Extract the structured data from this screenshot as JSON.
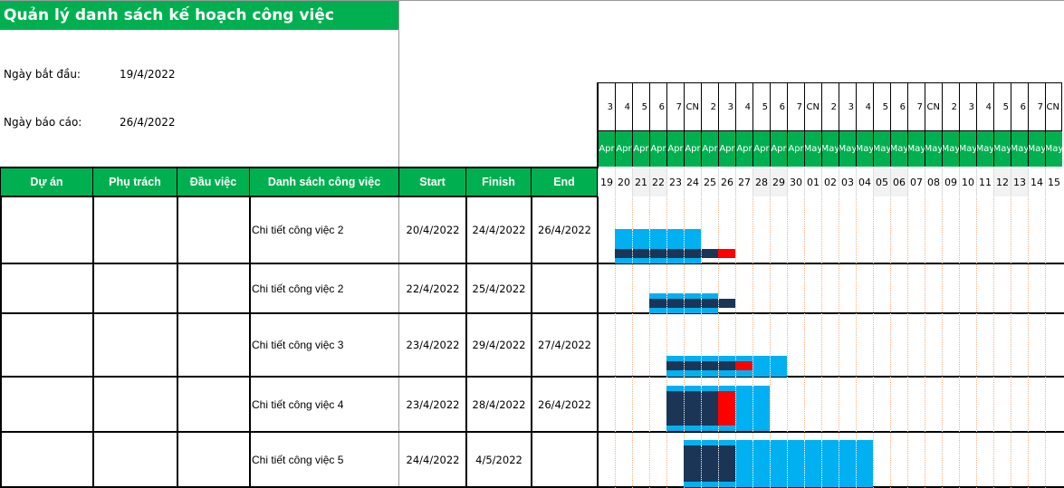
{
  "title": "Quản lý danh sách kế hoạch công việc",
  "info": {
    "start_label": "Ngày bắt đầu:",
    "start_value": "19/4/2022",
    "report_label": "Ngày báo cáo:",
    "report_value": "26/4/2022"
  },
  "columns": [
    "Dự án",
    "Phụ trách",
    "Đầu việc",
    "Danh sách công việc",
    "Start",
    "Finish",
    "End"
  ],
  "rows": [
    {
      "project": "",
      "owner": "",
      "task_head": "",
      "task": "Chi tiết công việc 2",
      "start": "20/4/2022",
      "finish": "24/4/2022",
      "end": "26/4/2022"
    },
    {
      "project": "",
      "owner": "",
      "task_head": "",
      "task": "Chi tiết công việc 2",
      "start": "22/4/2022",
      "finish": "25/4/2022",
      "end": ""
    },
    {
      "project": "",
      "owner": "",
      "task_head": "",
      "task": "Chi tiết công việc 3",
      "start": "23/4/2022",
      "finish": "29/4/2022",
      "end": "27/4/2022"
    },
    {
      "project": "",
      "owner": "",
      "task_head": "",
      "task": "Chi tiết công việc 4",
      "start": "23/4/2022",
      "finish": "28/4/2022",
      "end": "26/4/2022"
    },
    {
      "project": "",
      "owner": "",
      "task_head": "",
      "task": "Chi tiết công việc 5",
      "start": "24/4/2022",
      "finish": "4/5/2022",
      "end": ""
    }
  ],
  "gantt": {
    "weekdays": [
      "3",
      "4",
      "5",
      "6",
      "7",
      "CN",
      "2",
      "3",
      "4",
      "5",
      "6",
      "7",
      "CN",
      "2",
      "3",
      "4",
      "5",
      "6",
      "7",
      "CN",
      "2",
      "3",
      "4",
      "5",
      "6",
      "7",
      "CN"
    ],
    "months": [
      "Apr",
      "Apr",
      "Apr",
      "Apr",
      "Apr",
      "Apr",
      "Apr",
      "Apr",
      "Apr",
      "Apr",
      "Apr",
      "Apr",
      "May",
      "May",
      "May",
      "May",
      "May",
      "May",
      "May",
      "May",
      "May",
      "May",
      "May",
      "May",
      "May",
      "May",
      "May"
    ],
    "days": [
      "19",
      "20",
      "21",
      "22",
      "23",
      "24",
      "25",
      "26",
      "27",
      "28",
      "29",
      "30",
      "01",
      "02",
      "03",
      "04",
      "05",
      "06",
      "07",
      "08",
      "09",
      "10",
      "11",
      "12",
      "13",
      "14",
      "15"
    ],
    "shaded_days": [
      2,
      3,
      9,
      10,
      16,
      17,
      23,
      24
    ],
    "colors": {
      "planned": "#00b0f0",
      "actual": "#1b3557",
      "overdue": "#ff0000",
      "header": "#00b050"
    }
  }
}
